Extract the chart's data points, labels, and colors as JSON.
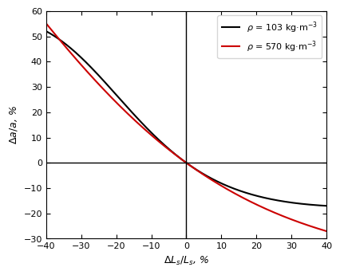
{
  "xlabel": "$\\mathit{\\Delta L_s / L_s}$, %",
  "ylabel": "$\\mathit{\\Delta a / a}$, %",
  "xlim": [
    -40,
    40
  ],
  "ylim": [
    -30,
    60
  ],
  "xticks": [
    -40,
    -30,
    -20,
    -10,
    0,
    10,
    20,
    30,
    40
  ],
  "yticks": [
    -30,
    -20,
    -10,
    0,
    10,
    20,
    30,
    40,
    50,
    60
  ],
  "legend1": "$\\rho$ = 103 kg·m$^{-3}$",
  "legend2": "$\\rho$ = 570 kg·m$^{-3}$",
  "color1": "#000000",
  "color2": "#cc0000",
  "linewidth": 1.5,
  "n_black": 0.62,
  "n_red": 1.0,
  "scale_black": 0.78,
  "scale_red": 0.78,
  "background_color": "#ffffff"
}
